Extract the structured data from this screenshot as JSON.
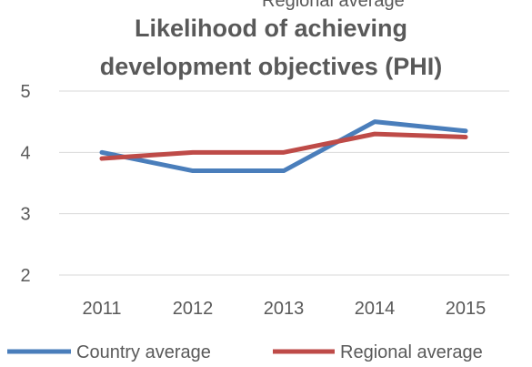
{
  "chart_data": {
    "type": "line",
    "title_line1": "Likelihood of achieving",
    "title_line2": "development objectives (PHI)",
    "cutoff_legend_text": "Regional average",
    "categories": [
      "2011",
      "2012",
      "2013",
      "2014",
      "2015"
    ],
    "ylim": [
      2,
      5
    ],
    "yticks": [
      "2",
      "3",
      "4",
      "5"
    ],
    "grid": true,
    "legend_position": "bottom",
    "series": [
      {
        "name": "Country average",
        "color": "#4a7ebb",
        "values": [
          4.0,
          3.7,
          3.7,
          4.5,
          4.35
        ]
      },
      {
        "name": "Regional average",
        "color": "#be4b48",
        "values": [
          3.9,
          4.0,
          4.0,
          4.3,
          4.25
        ]
      }
    ]
  }
}
